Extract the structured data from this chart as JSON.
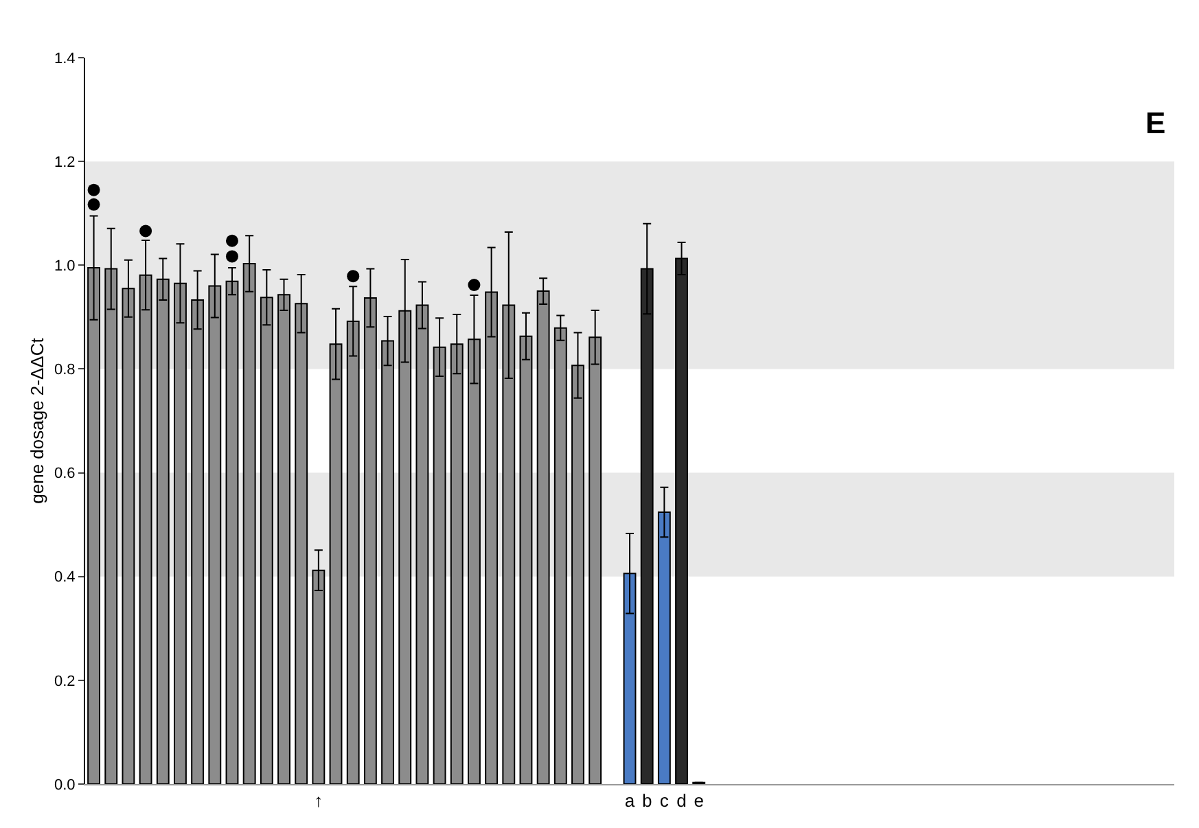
{
  "chart_data": {
    "type": "bar",
    "annotations": [
      "E"
    ],
    "ylabel": "gene dosage 2-ΔΔCt",
    "categories": [
      null,
      null,
      null,
      null,
      null,
      null,
      null,
      null,
      null,
      null,
      null,
      null,
      null,
      "↑",
      null,
      null,
      null,
      null,
      null,
      null,
      null,
      null,
      null,
      null,
      null,
      null,
      null,
      null,
      null,
      null,
      null,
      "a",
      "b",
      "c",
      "d",
      "e",
      null,
      null,
      null,
      null,
      null,
      null,
      null,
      null,
      null,
      null,
      null,
      null,
      null,
      null,
      null,
      null,
      null,
      null,
      null,
      null,
      null,
      null,
      null,
      null,
      null,
      null,
      null
    ],
    "series": [
      {
        "values": [
          0.995,
          0.993,
          0.955,
          0.981,
          0.973,
          0.965,
          0.933,
          0.96,
          0.969,
          1.003,
          0.938,
          0.943,
          0.926,
          0.412,
          0.848,
          0.892,
          0.937,
          0.854,
          0.912,
          0.923,
          0.842,
          0.848,
          0.857,
          0.948,
          0.923,
          0.863,
          0.95,
          0.879,
          0.807,
          0.861,
          null,
          0.406,
          0.993,
          0.524,
          1.013,
          0.003,
          null,
          null,
          null,
          null,
          null,
          null,
          null,
          null,
          null,
          null,
          null,
          null,
          null,
          null,
          null,
          null,
          null,
          null,
          null,
          null,
          null,
          null,
          null,
          null,
          null,
          null,
          null
        ],
        "colors": [
          "#8c8c8c",
          "#8c8c8c",
          "#8c8c8c",
          "#8c8c8c",
          "#8c8c8c",
          "#8c8c8c",
          "#8c8c8c",
          "#8c8c8c",
          "#8c8c8c",
          "#8c8c8c",
          "#8c8c8c",
          "#8c8c8c",
          "#8c8c8c",
          "#8c8c8c",
          "#8c8c8c",
          "#8c8c8c",
          "#8c8c8c",
          "#8c8c8c",
          "#8c8c8c",
          "#8c8c8c",
          "#8c8c8c",
          "#8c8c8c",
          "#8c8c8c",
          "#8c8c8c",
          "#8c8c8c",
          "#8c8c8c",
          "#8c8c8c",
          "#8c8c8c",
          "#8c8c8c",
          "#8c8c8c",
          "#8c8c8c",
          "#4a7bc4",
          "#2a2a2a",
          "#4a7bc4",
          "#2a2a2a",
          "#2a2a2a",
          "#8c8c8c",
          "#8c8c8c",
          "#8c8c8c",
          "#8c8c8c",
          "#8c8c8c",
          "#8c8c8c",
          "#8c8c8c",
          "#8c8c8c",
          "#8c8c8c",
          "#8c8c8c",
          "#8c8c8c",
          "#8c8c8c",
          "#8c8c8c",
          "#8c8c8c",
          "#8c8c8c",
          "#8c8c8c",
          "#8c8c8c",
          "#8c8c8c",
          "#8c8c8c",
          "#8c8c8c",
          "#8c8c8c",
          "#8c8c8c",
          "#8c8c8c",
          "#8c8c8c",
          "#8c8c8c",
          "#8c8c8c",
          "#8c8c8c"
        ],
        "errors": [
          0.1,
          0.078,
          0.055,
          0.067,
          0.04,
          0.076,
          0.056,
          0.061,
          0.026,
          0.054,
          0.053,
          0.03,
          0.056,
          0.039,
          0.068,
          0.067,
          0.056,
          0.047,
          0.099,
          0.045,
          0.056,
          0.057,
          0.085,
          0.086,
          0.141,
          0.045,
          0.025,
          0.024,
          0.063,
          0.052,
          null,
          0.077,
          0.087,
          0.048,
          0.031,
          null,
          null,
          null,
          null,
          null,
          null,
          null,
          null,
          null,
          null,
          null,
          null,
          null,
          null,
          null,
          null,
          null,
          null,
          null,
          null,
          null,
          null,
          null,
          null,
          null,
          null,
          null,
          null
        ]
      },
      {
        "type": "scatter",
        "marker": "circle",
        "color": "#000000",
        "values": [
          1.117,
          null,
          null,
          1.066,
          null,
          null,
          null,
          null,
          1.017,
          null,
          null,
          null,
          null,
          null,
          null,
          0.979,
          null,
          null,
          null,
          null,
          null,
          null,
          0.962,
          null,
          null,
          null,
          null,
          null,
          null,
          null,
          null,
          null,
          null,
          null,
          null,
          null,
          null,
          null,
          null,
          null,
          null,
          null,
          null,
          null,
          null,
          null,
          null,
          null,
          null,
          null,
          null,
          null,
          null,
          null,
          null,
          null,
          null,
          null,
          null,
          null,
          null,
          null,
          null
        ]
      },
      {
        "type": "scatter",
        "marker": "circle",
        "color": "#000000",
        "values": [
          1.145,
          null,
          null,
          null,
          null,
          null,
          null,
          null,
          1.047,
          null,
          null,
          null,
          null,
          null,
          null,
          null,
          null,
          null,
          null,
          null,
          null,
          null,
          null,
          null,
          null,
          null,
          null,
          null,
          null,
          null,
          null,
          null,
          null,
          null,
          null,
          null,
          null,
          null,
          null,
          null,
          null,
          null,
          null,
          null,
          null,
          null,
          null,
          null,
          null,
          null,
          null,
          null,
          null,
          null,
          null,
          null,
          null,
          null,
          null,
          null,
          null,
          null,
          null
        ]
      }
    ],
    "ylim": [
      0,
      1.4
    ],
    "yticks": [
      {
        "value": 0,
        "label": "0.0"
      },
      0.2,
      0.4,
      0.6,
      0.8,
      {
        "value": 1,
        "label": "1.0"
      },
      1.2,
      1.4
    ],
    "bands": [
      {
        "axis": "y",
        "from": 0.4,
        "to": 0.6,
        "color": "#e8e8e8"
      },
      {
        "axis": "y",
        "from": 0.8,
        "to": 1.2,
        "color": "#e8e8e8"
      }
    ],
    "grid": false
  }
}
